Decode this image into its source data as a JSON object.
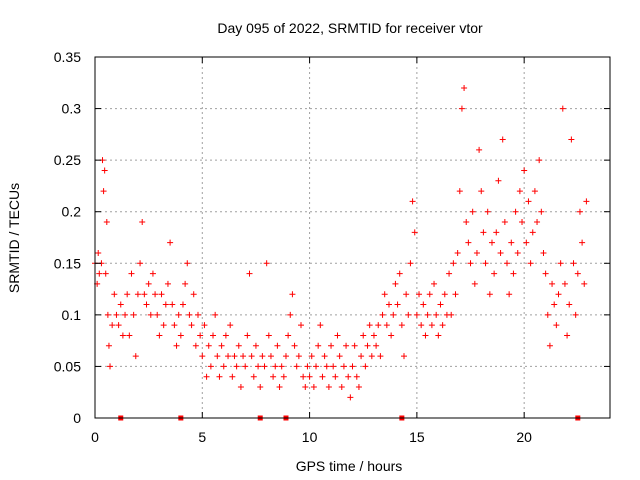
{
  "chart_data": {
    "type": "scatter",
    "title": "Day 095 of 2022, SRMTID for receiver vtor",
    "xlabel": "GPS time / hours",
    "ylabel": "SRMTID / TECUs",
    "xlim": [
      0,
      24
    ],
    "ylim": [
      0,
      0.35
    ],
    "xticks": [
      0,
      5,
      10,
      15,
      20
    ],
    "xtick_labels": [
      "0",
      "5",
      "10",
      "15",
      "20"
    ],
    "yticks": [
      0,
      0.05,
      0.1,
      0.15,
      0.2,
      0.25,
      0.3,
      0.35
    ],
    "ytick_labels": [
      "0",
      "0.05",
      "0.1",
      "0.15",
      "0.2",
      "0.25",
      "0.3",
      "0.35"
    ],
    "grid": true,
    "marker": "+",
    "color": "#ff0000",
    "series": [
      {
        "name": "SRMTID",
        "points": [
          [
            0.0,
            0.15
          ],
          [
            0.1,
            0.13
          ],
          [
            0.15,
            0.16
          ],
          [
            0.2,
            0.14
          ],
          [
            0.3,
            0.15
          ],
          [
            0.35,
            0.25
          ],
          [
            0.4,
            0.22
          ],
          [
            0.45,
            0.24
          ],
          [
            0.5,
            0.14
          ],
          [
            0.55,
            0.19
          ],
          [
            0.6,
            0.1
          ],
          [
            0.65,
            0.07
          ],
          [
            0.7,
            0.05
          ],
          [
            0.8,
            0.09
          ],
          [
            0.9,
            0.12
          ],
          [
            1.0,
            0.1
          ],
          [
            1.1,
            0.09
          ],
          [
            1.2,
            0.11
          ],
          [
            1.3,
            0.08
          ],
          [
            1.4,
            0.1
          ],
          [
            1.5,
            0.12
          ],
          [
            1.6,
            0.08
          ],
          [
            1.7,
            0.14
          ],
          [
            1.8,
            0.1
          ],
          [
            1.9,
            0.06
          ],
          [
            2.0,
            0.12
          ],
          [
            2.1,
            0.15
          ],
          [
            2.2,
            0.19
          ],
          [
            2.3,
            0.12
          ],
          [
            2.4,
            0.11
          ],
          [
            2.5,
            0.13
          ],
          [
            2.6,
            0.1
          ],
          [
            2.7,
            0.14
          ],
          [
            2.8,
            0.12
          ],
          [
            2.9,
            0.1
          ],
          [
            3.0,
            0.08
          ],
          [
            3.1,
            0.12
          ],
          [
            3.2,
            0.09
          ],
          [
            3.3,
            0.11
          ],
          [
            3.4,
            0.13
          ],
          [
            3.5,
            0.17
          ],
          [
            3.6,
            0.11
          ],
          [
            3.7,
            0.09
          ],
          [
            3.8,
            0.07
          ],
          [
            3.9,
            0.1
          ],
          [
            4.0,
            0.08
          ],
          [
            4.1,
            0.11
          ],
          [
            4.2,
            0.13
          ],
          [
            4.3,
            0.15
          ],
          [
            4.4,
            0.1
          ],
          [
            4.5,
            0.09
          ],
          [
            4.6,
            0.12
          ],
          [
            4.7,
            0.07
          ],
          [
            4.8,
            0.1
          ],
          [
            4.9,
            0.08
          ],
          [
            5.0,
            0.06
          ],
          [
            5.1,
            0.09
          ],
          [
            5.2,
            0.04
          ],
          [
            5.3,
            0.07
          ],
          [
            5.4,
            0.05
          ],
          [
            5.5,
            0.08
          ],
          [
            5.6,
            0.1
          ],
          [
            5.7,
            0.06
          ],
          [
            5.8,
            0.04
          ],
          [
            5.9,
            0.07
          ],
          [
            6.0,
            0.05
          ],
          [
            6.1,
            0.08
          ],
          [
            6.2,
            0.06
          ],
          [
            6.3,
            0.09
          ],
          [
            6.4,
            0.04
          ],
          [
            6.5,
            0.06
          ],
          [
            6.6,
            0.05
          ],
          [
            6.7,
            0.07
          ],
          [
            6.8,
            0.03
          ],
          [
            6.9,
            0.06
          ],
          [
            7.0,
            0.05
          ],
          [
            7.1,
            0.08
          ],
          [
            7.2,
            0.14
          ],
          [
            7.3,
            0.06
          ],
          [
            7.4,
            0.04
          ],
          [
            7.5,
            0.07
          ],
          [
            7.6,
            0.05
          ],
          [
            7.7,
            0.03
          ],
          [
            7.8,
            0.06
          ],
          [
            7.9,
            0.05
          ],
          [
            8.0,
            0.15
          ],
          [
            8.1,
            0.08
          ],
          [
            8.2,
            0.06
          ],
          [
            8.3,
            0.04
          ],
          [
            8.4,
            0.05
          ],
          [
            8.5,
            0.07
          ],
          [
            8.6,
            0.03
          ],
          [
            8.7,
            0.05
          ],
          [
            8.8,
            0.04
          ],
          [
            8.9,
            0.06
          ],
          [
            9.0,
            0.08
          ],
          [
            9.1,
            0.1
          ],
          [
            9.2,
            0.12
          ],
          [
            9.3,
            0.07
          ],
          [
            9.4,
            0.05
          ],
          [
            9.5,
            0.06
          ],
          [
            9.6,
            0.09
          ],
          [
            9.7,
            0.04
          ],
          [
            9.8,
            0.03
          ],
          [
            9.9,
            0.05
          ],
          [
            10.0,
            0.04
          ],
          [
            10.1,
            0.06
          ],
          [
            10.2,
            0.03
          ],
          [
            10.3,
            0.05
          ],
          [
            10.4,
            0.07
          ],
          [
            10.5,
            0.09
          ],
          [
            10.6,
            0.04
          ],
          [
            10.7,
            0.06
          ],
          [
            10.8,
            0.05
          ],
          [
            10.9,
            0.03
          ],
          [
            11.0,
            0.07
          ],
          [
            11.1,
            0.05
          ],
          [
            11.2,
            0.04
          ],
          [
            11.3,
            0.08
          ],
          [
            11.4,
            0.06
          ],
          [
            11.5,
            0.03
          ],
          [
            11.6,
            0.05
          ],
          [
            11.7,
            0.07
          ],
          [
            11.8,
            0.04
          ],
          [
            11.9,
            0.02
          ],
          [
            12.0,
            0.05
          ],
          [
            12.1,
            0.07
          ],
          [
            12.2,
            0.04
          ],
          [
            12.3,
            0.03
          ],
          [
            12.4,
            0.06
          ],
          [
            12.5,
            0.08
          ],
          [
            12.6,
            0.05
          ],
          [
            12.7,
            0.07
          ],
          [
            12.8,
            0.09
          ],
          [
            12.9,
            0.06
          ],
          [
            13.0,
            0.08
          ],
          [
            13.1,
            0.07
          ],
          [
            13.2,
            0.09
          ],
          [
            13.3,
            0.06
          ],
          [
            13.4,
            0.1
          ],
          [
            13.5,
            0.12
          ],
          [
            13.6,
            0.09
          ],
          [
            13.7,
            0.11
          ],
          [
            13.8,
            0.08
          ],
          [
            13.9,
            0.1
          ],
          [
            14.0,
            0.13
          ],
          [
            14.1,
            0.11
          ],
          [
            14.2,
            0.14
          ],
          [
            14.3,
            0.09
          ],
          [
            14.4,
            0.06
          ],
          [
            14.5,
            0.12
          ],
          [
            14.6,
            0.1
          ],
          [
            14.7,
            0.15
          ],
          [
            14.8,
            0.21
          ],
          [
            14.9,
            0.18
          ],
          [
            15.0,
            0.1
          ],
          [
            15.1,
            0.12
          ],
          [
            15.2,
            0.09
          ],
          [
            15.3,
            0.11
          ],
          [
            15.4,
            0.08
          ],
          [
            15.5,
            0.1
          ],
          [
            15.6,
            0.12
          ],
          [
            15.7,
            0.09
          ],
          [
            15.8,
            0.13
          ],
          [
            15.9,
            0.1
          ],
          [
            16.0,
            0.08
          ],
          [
            16.1,
            0.11
          ],
          [
            16.2,
            0.09
          ],
          [
            16.3,
            0.12
          ],
          [
            16.4,
            0.1
          ],
          [
            16.5,
            0.14
          ],
          [
            16.6,
            0.1
          ],
          [
            16.7,
            0.15
          ],
          [
            16.8,
            0.12
          ],
          [
            16.9,
            0.16
          ],
          [
            17.0,
            0.22
          ],
          [
            17.1,
            0.3
          ],
          [
            17.2,
            0.32
          ],
          [
            17.3,
            0.19
          ],
          [
            17.4,
            0.17
          ],
          [
            17.5,
            0.15
          ],
          [
            17.6,
            0.2
          ],
          [
            17.7,
            0.13
          ],
          [
            17.8,
            0.16
          ],
          [
            17.9,
            0.26
          ],
          [
            18.0,
            0.22
          ],
          [
            18.1,
            0.18
          ],
          [
            18.2,
            0.15
          ],
          [
            18.3,
            0.2
          ],
          [
            18.4,
            0.12
          ],
          [
            18.5,
            0.17
          ],
          [
            18.6,
            0.14
          ],
          [
            18.7,
            0.18
          ],
          [
            18.8,
            0.23
          ],
          [
            18.9,
            0.16
          ],
          [
            19.0,
            0.27
          ],
          [
            19.1,
            0.19
          ],
          [
            19.2,
            0.15
          ],
          [
            19.3,
            0.12
          ],
          [
            19.4,
            0.17
          ],
          [
            19.5,
            0.14
          ],
          [
            19.6,
            0.2
          ],
          [
            19.7,
            0.16
          ],
          [
            19.8,
            0.22
          ],
          [
            19.9,
            0.19
          ],
          [
            20.0,
            0.24
          ],
          [
            20.1,
            0.17
          ],
          [
            20.2,
            0.21
          ],
          [
            20.3,
            0.15
          ],
          [
            20.4,
            0.18
          ],
          [
            20.5,
            0.22
          ],
          [
            20.6,
            0.19
          ],
          [
            20.7,
            0.25
          ],
          [
            20.8,
            0.2
          ],
          [
            20.9,
            0.16
          ],
          [
            21.0,
            0.14
          ],
          [
            21.1,
            0.1
          ],
          [
            21.2,
            0.07
          ],
          [
            21.3,
            0.13
          ],
          [
            21.4,
            0.11
          ],
          [
            21.5,
            0.09
          ],
          [
            21.6,
            0.12
          ],
          [
            21.7,
            0.15
          ],
          [
            21.8,
            0.3
          ],
          [
            21.9,
            0.13
          ],
          [
            22.0,
            0.08
          ],
          [
            22.1,
            0.11
          ],
          [
            22.2,
            0.27
          ],
          [
            22.3,
            0.15
          ],
          [
            22.4,
            0.1
          ],
          [
            22.5,
            0.14
          ],
          [
            22.6,
            0.2
          ],
          [
            22.7,
            0.17
          ],
          [
            22.8,
            0.13
          ],
          [
            22.9,
            0.21
          ]
        ]
      }
    ],
    "baseline_markers_x": [
      1.2,
      4.0,
      7.7,
      8.9,
      14.3,
      22.5
    ]
  }
}
